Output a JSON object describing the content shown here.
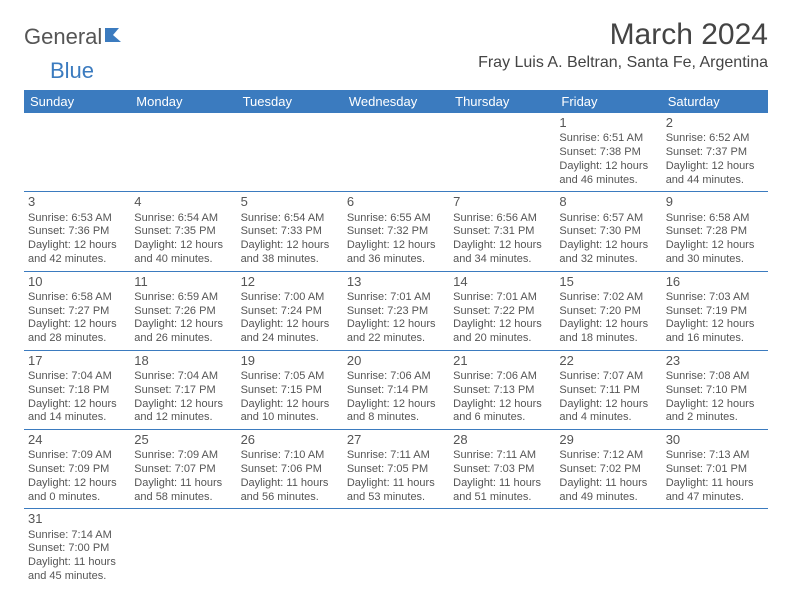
{
  "logo": {
    "text1": "General",
    "text2": "Blue"
  },
  "title": "March 2024",
  "location": "Fray Luis A. Beltran, Santa Fe, Argentina",
  "colors": {
    "header_bg": "#3b7bbf",
    "header_fg": "#ffffff",
    "text": "#555555",
    "rule": "#3b7bbf"
  },
  "day_headers": [
    "Sunday",
    "Monday",
    "Tuesday",
    "Wednesday",
    "Thursday",
    "Friday",
    "Saturday"
  ],
  "weeks": [
    [
      null,
      null,
      null,
      null,
      null,
      {
        "n": "1",
        "sr": "Sunrise: 6:51 AM",
        "ss": "Sunset: 7:38 PM",
        "d1": "Daylight: 12 hours",
        "d2": "and 46 minutes."
      },
      {
        "n": "2",
        "sr": "Sunrise: 6:52 AM",
        "ss": "Sunset: 7:37 PM",
        "d1": "Daylight: 12 hours",
        "d2": "and 44 minutes."
      }
    ],
    [
      {
        "n": "3",
        "sr": "Sunrise: 6:53 AM",
        "ss": "Sunset: 7:36 PM",
        "d1": "Daylight: 12 hours",
        "d2": "and 42 minutes."
      },
      {
        "n": "4",
        "sr": "Sunrise: 6:54 AM",
        "ss": "Sunset: 7:35 PM",
        "d1": "Daylight: 12 hours",
        "d2": "and 40 minutes."
      },
      {
        "n": "5",
        "sr": "Sunrise: 6:54 AM",
        "ss": "Sunset: 7:33 PM",
        "d1": "Daylight: 12 hours",
        "d2": "and 38 minutes."
      },
      {
        "n": "6",
        "sr": "Sunrise: 6:55 AM",
        "ss": "Sunset: 7:32 PM",
        "d1": "Daylight: 12 hours",
        "d2": "and 36 minutes."
      },
      {
        "n": "7",
        "sr": "Sunrise: 6:56 AM",
        "ss": "Sunset: 7:31 PM",
        "d1": "Daylight: 12 hours",
        "d2": "and 34 minutes."
      },
      {
        "n": "8",
        "sr": "Sunrise: 6:57 AM",
        "ss": "Sunset: 7:30 PM",
        "d1": "Daylight: 12 hours",
        "d2": "and 32 minutes."
      },
      {
        "n": "9",
        "sr": "Sunrise: 6:58 AM",
        "ss": "Sunset: 7:28 PM",
        "d1": "Daylight: 12 hours",
        "d2": "and 30 minutes."
      }
    ],
    [
      {
        "n": "10",
        "sr": "Sunrise: 6:58 AM",
        "ss": "Sunset: 7:27 PM",
        "d1": "Daylight: 12 hours",
        "d2": "and 28 minutes."
      },
      {
        "n": "11",
        "sr": "Sunrise: 6:59 AM",
        "ss": "Sunset: 7:26 PM",
        "d1": "Daylight: 12 hours",
        "d2": "and 26 minutes."
      },
      {
        "n": "12",
        "sr": "Sunrise: 7:00 AM",
        "ss": "Sunset: 7:24 PM",
        "d1": "Daylight: 12 hours",
        "d2": "and 24 minutes."
      },
      {
        "n": "13",
        "sr": "Sunrise: 7:01 AM",
        "ss": "Sunset: 7:23 PM",
        "d1": "Daylight: 12 hours",
        "d2": "and 22 minutes."
      },
      {
        "n": "14",
        "sr": "Sunrise: 7:01 AM",
        "ss": "Sunset: 7:22 PM",
        "d1": "Daylight: 12 hours",
        "d2": "and 20 minutes."
      },
      {
        "n": "15",
        "sr": "Sunrise: 7:02 AM",
        "ss": "Sunset: 7:20 PM",
        "d1": "Daylight: 12 hours",
        "d2": "and 18 minutes."
      },
      {
        "n": "16",
        "sr": "Sunrise: 7:03 AM",
        "ss": "Sunset: 7:19 PM",
        "d1": "Daylight: 12 hours",
        "d2": "and 16 minutes."
      }
    ],
    [
      {
        "n": "17",
        "sr": "Sunrise: 7:04 AM",
        "ss": "Sunset: 7:18 PM",
        "d1": "Daylight: 12 hours",
        "d2": "and 14 minutes."
      },
      {
        "n": "18",
        "sr": "Sunrise: 7:04 AM",
        "ss": "Sunset: 7:17 PM",
        "d1": "Daylight: 12 hours",
        "d2": "and 12 minutes."
      },
      {
        "n": "19",
        "sr": "Sunrise: 7:05 AM",
        "ss": "Sunset: 7:15 PM",
        "d1": "Daylight: 12 hours",
        "d2": "and 10 minutes."
      },
      {
        "n": "20",
        "sr": "Sunrise: 7:06 AM",
        "ss": "Sunset: 7:14 PM",
        "d1": "Daylight: 12 hours",
        "d2": "and 8 minutes."
      },
      {
        "n": "21",
        "sr": "Sunrise: 7:06 AM",
        "ss": "Sunset: 7:13 PM",
        "d1": "Daylight: 12 hours",
        "d2": "and 6 minutes."
      },
      {
        "n": "22",
        "sr": "Sunrise: 7:07 AM",
        "ss": "Sunset: 7:11 PM",
        "d1": "Daylight: 12 hours",
        "d2": "and 4 minutes."
      },
      {
        "n": "23",
        "sr": "Sunrise: 7:08 AM",
        "ss": "Sunset: 7:10 PM",
        "d1": "Daylight: 12 hours",
        "d2": "and 2 minutes."
      }
    ],
    [
      {
        "n": "24",
        "sr": "Sunrise: 7:09 AM",
        "ss": "Sunset: 7:09 PM",
        "d1": "Daylight: 12 hours",
        "d2": "and 0 minutes."
      },
      {
        "n": "25",
        "sr": "Sunrise: 7:09 AM",
        "ss": "Sunset: 7:07 PM",
        "d1": "Daylight: 11 hours",
        "d2": "and 58 minutes."
      },
      {
        "n": "26",
        "sr": "Sunrise: 7:10 AM",
        "ss": "Sunset: 7:06 PM",
        "d1": "Daylight: 11 hours",
        "d2": "and 56 minutes."
      },
      {
        "n": "27",
        "sr": "Sunrise: 7:11 AM",
        "ss": "Sunset: 7:05 PM",
        "d1": "Daylight: 11 hours",
        "d2": "and 53 minutes."
      },
      {
        "n": "28",
        "sr": "Sunrise: 7:11 AM",
        "ss": "Sunset: 7:03 PM",
        "d1": "Daylight: 11 hours",
        "d2": "and 51 minutes."
      },
      {
        "n": "29",
        "sr": "Sunrise: 7:12 AM",
        "ss": "Sunset: 7:02 PM",
        "d1": "Daylight: 11 hours",
        "d2": "and 49 minutes."
      },
      {
        "n": "30",
        "sr": "Sunrise: 7:13 AM",
        "ss": "Sunset: 7:01 PM",
        "d1": "Daylight: 11 hours",
        "d2": "and 47 minutes."
      }
    ],
    [
      {
        "n": "31",
        "sr": "Sunrise: 7:14 AM",
        "ss": "Sunset: 7:00 PM",
        "d1": "Daylight: 11 hours",
        "d2": "and 45 minutes."
      },
      null,
      null,
      null,
      null,
      null,
      null
    ]
  ]
}
